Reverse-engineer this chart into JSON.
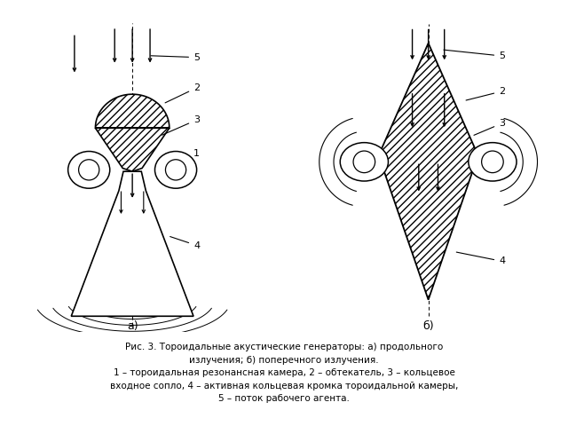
{
  "title_a": "а)",
  "title_b": "б)",
  "caption_line1": "Рис. 3. Тороидальные акустические генераторы: а) продольного",
  "caption_line2": "излучения; б) поперечного излучения.",
  "caption_line3": "1 – тороидальная резонансная камера, 2 – обтекатель, 3 – кольцевое",
  "caption_line4": "входное сопло, 4 – активная кольцевая кромка тороидальной камеры,",
  "caption_line5": "5 – поток рабочего агента.",
  "bg_color": "#ffffff",
  "line_color": "#000000"
}
